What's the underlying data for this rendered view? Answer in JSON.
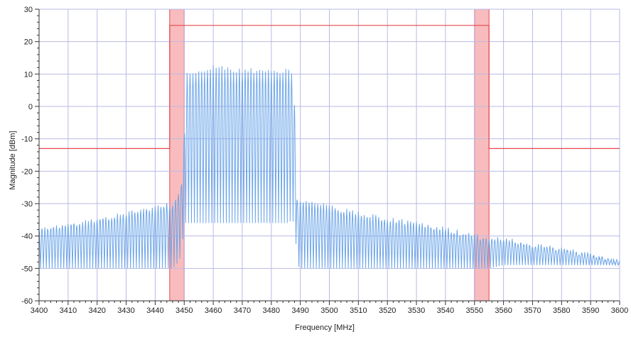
{
  "chart_data": {
    "type": "line",
    "title": "",
    "xlabel": "Frequency [MHz]",
    "ylabel": "Magnitude [dBm]",
    "xlim": [
      3400,
      3600
    ],
    "ylim": [
      -60,
      30
    ],
    "x_ticks": [
      3400,
      3410,
      3420,
      3430,
      3440,
      3450,
      3460,
      3470,
      3480,
      3490,
      3500,
      3510,
      3520,
      3530,
      3540,
      3550,
      3560,
      3570,
      3580,
      3590,
      3600
    ],
    "y_ticks": [
      30,
      20,
      10,
      0,
      -10,
      -20,
      -30,
      -40,
      -50,
      -60
    ],
    "grid": true,
    "colors": {
      "spectrum": "#6ea6e8",
      "mask": "#e8474e",
      "shade": "#f5a6a8",
      "grid": "#b9b9e6",
      "axis": "#333333"
    },
    "spectrum_envelope": {
      "x": [
        3400,
        3405,
        3420,
        3430,
        3440,
        3444,
        3446,
        3448,
        3449,
        3450,
        3451,
        3455,
        3460,
        3470,
        3480,
        3486,
        3487,
        3488,
        3489,
        3490,
        3495,
        3500,
        3510,
        3520,
        3530,
        3540,
        3550,
        3555,
        3560,
        3570,
        3580,
        3590,
        3600
      ],
      "upper": [
        -38,
        -37,
        -35,
        -33,
        -31,
        -30,
        -30,
        -27,
        -24,
        -8,
        10,
        11,
        12,
        11,
        11,
        11,
        10,
        0,
        -30,
        -29,
        -30,
        -31,
        -33,
        -35,
        -36,
        -38,
        -40,
        -41,
        -41,
        -43,
        -44,
        -46,
        -48
      ],
      "lower": [
        -50,
        -50,
        -50,
        -50,
        -50,
        -50,
        -50,
        -48,
        -46,
        -36,
        -36,
        -36,
        -36,
        -36,
        -36,
        -36,
        -35,
        -36,
        -49,
        -50,
        -50,
        -50,
        -50,
        -50,
        -50,
        -50,
        -50,
        -50,
        -49,
        -49,
        -49,
        -49,
        -49
      ]
    },
    "spectrum_oscillation_period_mhz": 1,
    "series": [
      {
        "x": [
          3400,
          3445,
          3445,
          3555,
          3555,
          3600
        ],
        "y": [
          -13,
          -13,
          25,
          25,
          -13,
          -13
        ]
      }
    ],
    "shaded_bands": [
      {
        "from": 3445,
        "to": 3450
      },
      {
        "from": 3550,
        "to": 3555
      }
    ]
  }
}
